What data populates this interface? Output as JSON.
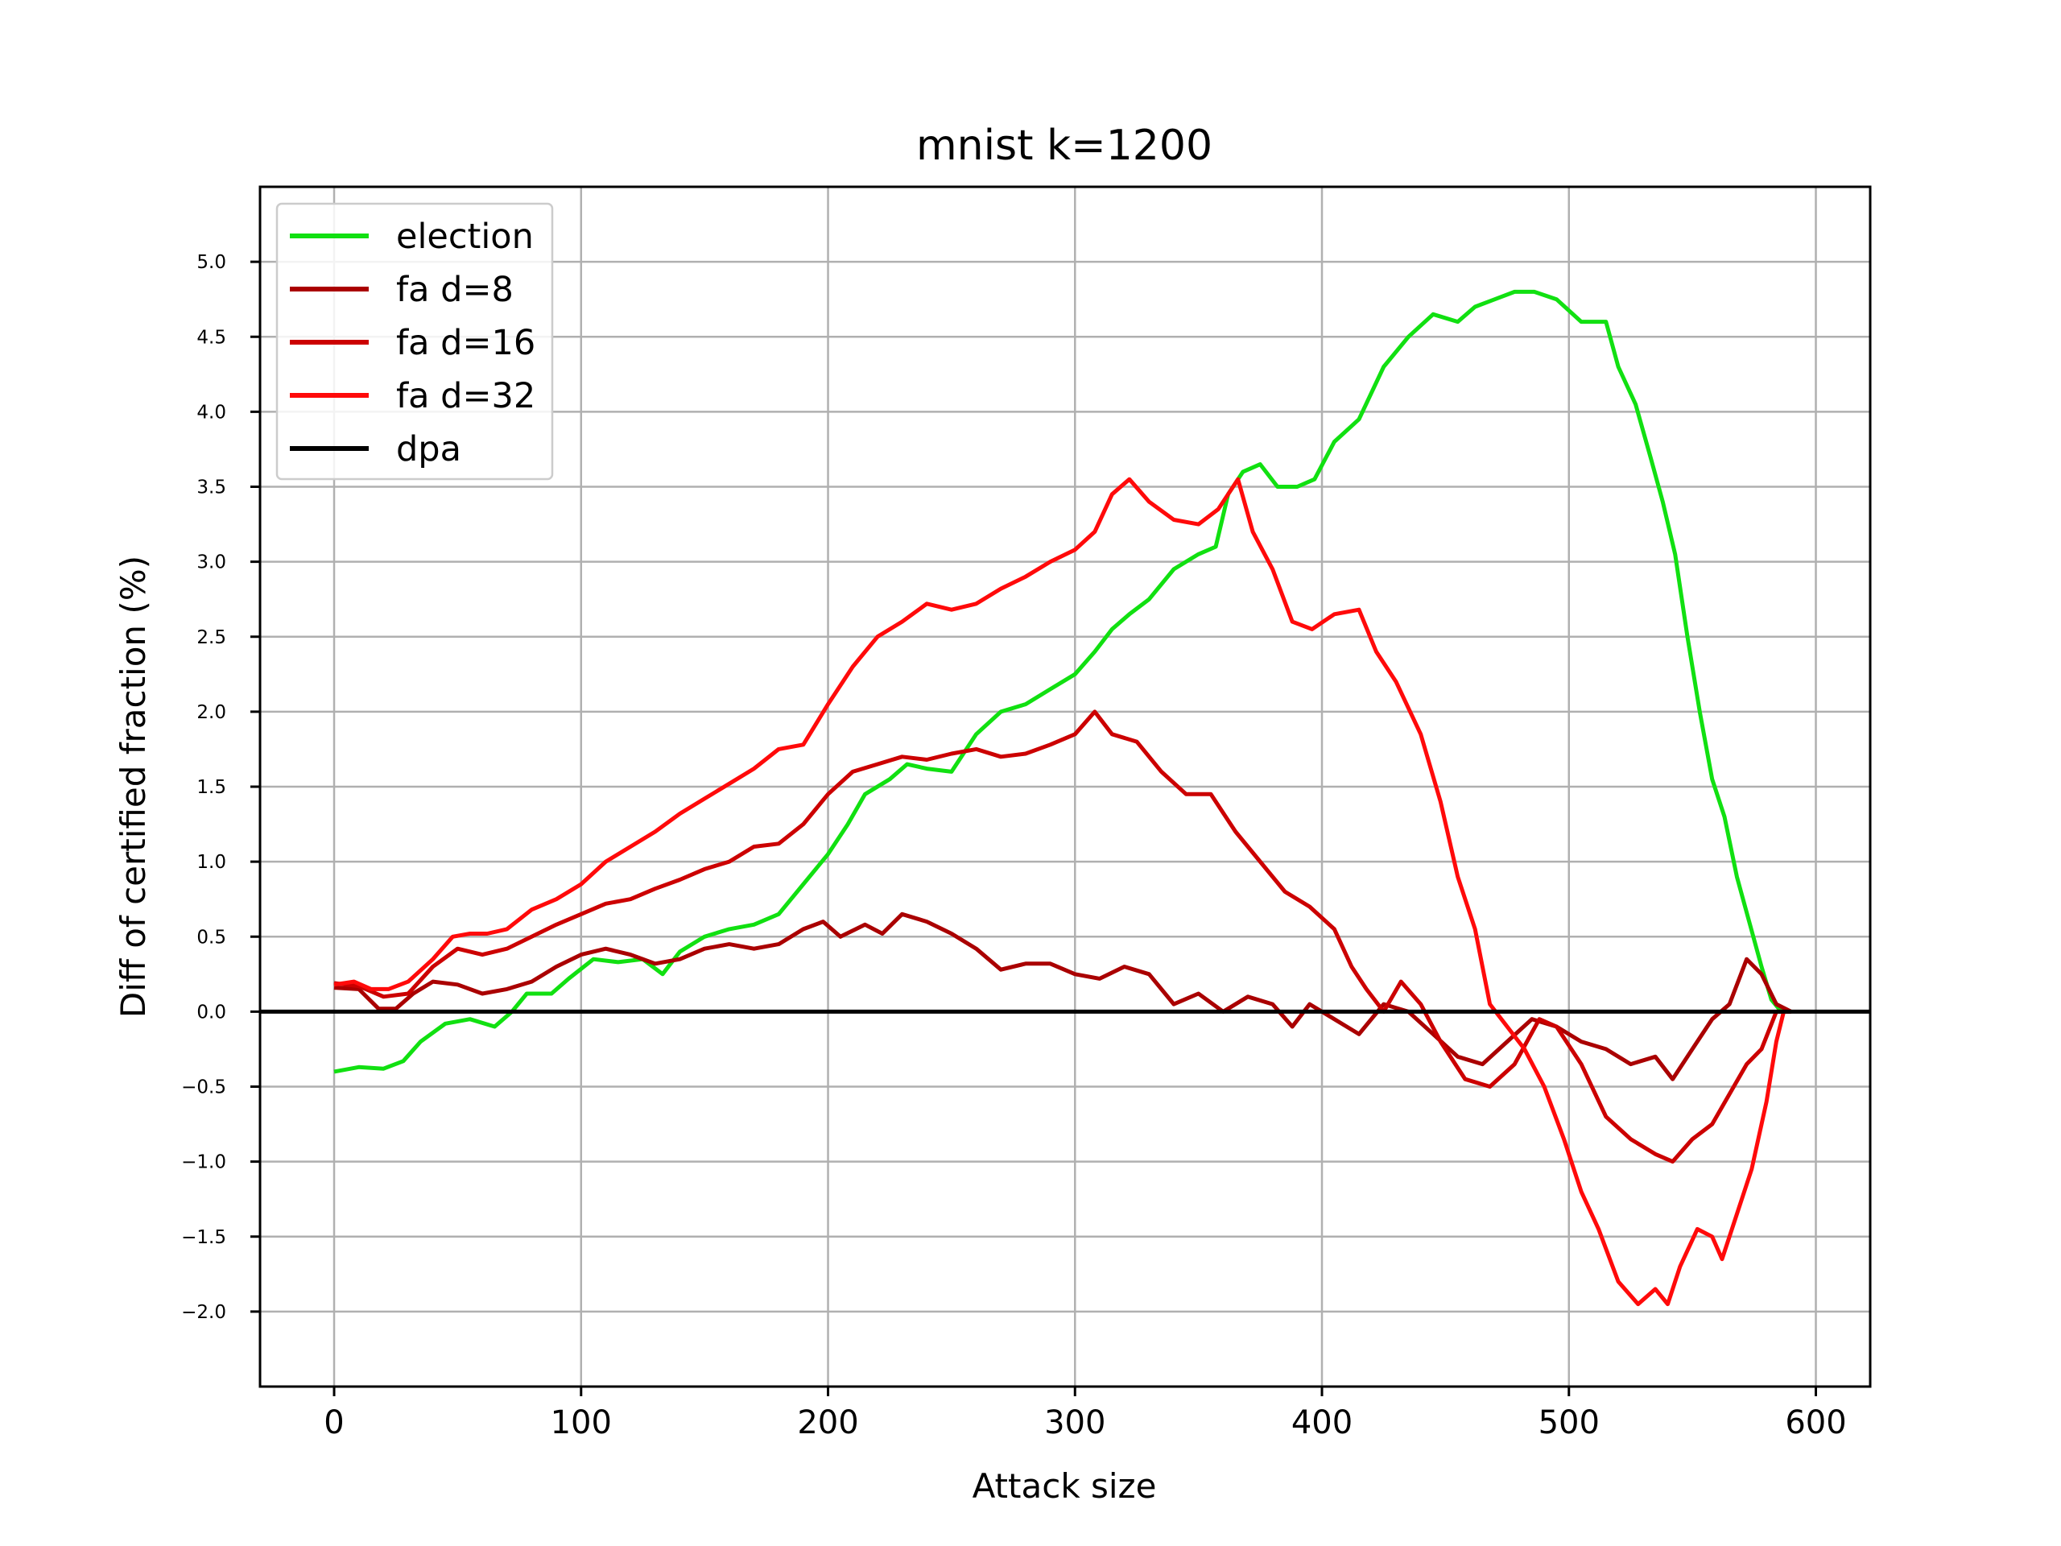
{
  "chart_data": {
    "type": "line",
    "title": "mnist k=1200",
    "xlabel": "Attack size",
    "ylabel": "Diff of certified fraction (%)",
    "xlim": [
      -30,
      622
    ],
    "ylim": [
      -2.5,
      5.5
    ],
    "xticks": [
      0,
      100,
      200,
      300,
      400,
      500,
      600
    ],
    "yticks": [
      -2.0,
      -1.5,
      -1.0,
      -0.5,
      0.0,
      0.5,
      1.0,
      1.5,
      2.0,
      2.5,
      3.0,
      3.5,
      4.0,
      4.5,
      5.0
    ],
    "xtick_labels": [
      "0",
      "100",
      "200",
      "300",
      "400",
      "500",
      "600"
    ],
    "ytick_labels": [
      "−2.0",
      "−1.5",
      "−1.0",
      "−0.5",
      "0.0",
      "0.5",
      "1.0",
      "1.5",
      "2.0",
      "2.5",
      "3.0",
      "3.5",
      "4.0",
      "4.5",
      "5.0"
    ],
    "grid": true,
    "legend_position": "upper-left",
    "series": [
      {
        "name": "election",
        "color": "#11e011",
        "points": [
          [
            0,
            -0.4
          ],
          [
            10,
            -0.37
          ],
          [
            20,
            -0.38
          ],
          [
            28,
            -0.33
          ],
          [
            35,
            -0.2
          ],
          [
            45,
            -0.08
          ],
          [
            55,
            -0.05
          ],
          [
            65,
            -0.1
          ],
          [
            72,
            0.0
          ],
          [
            78,
            0.12
          ],
          [
            88,
            0.12
          ],
          [
            95,
            0.22
          ],
          [
            105,
            0.35
          ],
          [
            115,
            0.33
          ],
          [
            125,
            0.35
          ],
          [
            133,
            0.25
          ],
          [
            140,
            0.4
          ],
          [
            150,
            0.5
          ],
          [
            160,
            0.55
          ],
          [
            170,
            0.58
          ],
          [
            180,
            0.65
          ],
          [
            190,
            0.85
          ],
          [
            200,
            1.05
          ],
          [
            208,
            1.25
          ],
          [
            215,
            1.45
          ],
          [
            225,
            1.55
          ],
          [
            232,
            1.65
          ],
          [
            240,
            1.62
          ],
          [
            250,
            1.6
          ],
          [
            260,
            1.85
          ],
          [
            270,
            2.0
          ],
          [
            280,
            2.05
          ],
          [
            290,
            2.15
          ],
          [
            300,
            2.25
          ],
          [
            308,
            2.4
          ],
          [
            315,
            2.55
          ],
          [
            322,
            2.65
          ],
          [
            330,
            2.75
          ],
          [
            340,
            2.95
          ],
          [
            350,
            3.05
          ],
          [
            357,
            3.1
          ],
          [
            362,
            3.45
          ],
          [
            368,
            3.6
          ],
          [
            375,
            3.65
          ],
          [
            382,
            3.5
          ],
          [
            390,
            3.5
          ],
          [
            397,
            3.55
          ],
          [
            405,
            3.8
          ],
          [
            415,
            3.95
          ],
          [
            425,
            4.3
          ],
          [
            435,
            4.5
          ],
          [
            445,
            4.65
          ],
          [
            455,
            4.6
          ],
          [
            462,
            4.7
          ],
          [
            470,
            4.75
          ],
          [
            478,
            4.8
          ],
          [
            486,
            4.8
          ],
          [
            495,
            4.75
          ],
          [
            505,
            4.6
          ],
          [
            515,
            4.6
          ],
          [
            520,
            4.3
          ],
          [
            527,
            4.05
          ],
          [
            533,
            3.7
          ],
          [
            538,
            3.4
          ],
          [
            543,
            3.05
          ],
          [
            548,
            2.5
          ],
          [
            553,
            2.0
          ],
          [
            558,
            1.55
          ],
          [
            563,
            1.3
          ],
          [
            568,
            0.9
          ],
          [
            573,
            0.6
          ],
          [
            578,
            0.3
          ],
          [
            582,
            0.08
          ],
          [
            586,
            0.0
          ],
          [
            590,
            0.0
          ]
        ]
      },
      {
        "name": "fa d=8",
        "color": "#aa0000",
        "points": [
          [
            0,
            0.16
          ],
          [
            10,
            0.15
          ],
          [
            18,
            0.02
          ],
          [
            25,
            0.02
          ],
          [
            32,
            0.12
          ],
          [
            40,
            0.2
          ],
          [
            50,
            0.18
          ],
          [
            60,
            0.12
          ],
          [
            70,
            0.15
          ],
          [
            80,
            0.2
          ],
          [
            90,
            0.3
          ],
          [
            100,
            0.38
          ],
          [
            110,
            0.42
          ],
          [
            120,
            0.38
          ],
          [
            130,
            0.32
          ],
          [
            140,
            0.35
          ],
          [
            150,
            0.42
          ],
          [
            160,
            0.45
          ],
          [
            170,
            0.42
          ],
          [
            180,
            0.45
          ],
          [
            190,
            0.55
          ],
          [
            198,
            0.6
          ],
          [
            205,
            0.5
          ],
          [
            215,
            0.58
          ],
          [
            222,
            0.52
          ],
          [
            230,
            0.65
          ],
          [
            240,
            0.6
          ],
          [
            250,
            0.52
          ],
          [
            260,
            0.42
          ],
          [
            270,
            0.28
          ],
          [
            280,
            0.32
          ],
          [
            290,
            0.32
          ],
          [
            300,
            0.25
          ],
          [
            310,
            0.22
          ],
          [
            320,
            0.3
          ],
          [
            330,
            0.25
          ],
          [
            340,
            0.05
          ],
          [
            350,
            0.12
          ],
          [
            360,
            0.0
          ],
          [
            370,
            0.1
          ],
          [
            380,
            0.05
          ],
          [
            388,
            -0.1
          ],
          [
            395,
            0.05
          ],
          [
            405,
            -0.05
          ],
          [
            415,
            -0.15
          ],
          [
            425,
            0.05
          ],
          [
            435,
            0.0
          ],
          [
            445,
            -0.15
          ],
          [
            455,
            -0.3
          ],
          [
            465,
            -0.35
          ],
          [
            475,
            -0.2
          ],
          [
            485,
            -0.05
          ],
          [
            495,
            -0.1
          ],
          [
            505,
            -0.2
          ],
          [
            515,
            -0.25
          ],
          [
            525,
            -0.35
          ],
          [
            535,
            -0.3
          ],
          [
            542,
            -0.45
          ],
          [
            550,
            -0.25
          ],
          [
            558,
            -0.05
          ],
          [
            565,
            0.05
          ],
          [
            572,
            0.35
          ],
          [
            578,
            0.25
          ],
          [
            584,
            0.05
          ],
          [
            590,
            0.0
          ]
        ]
      },
      {
        "name": "fa d=16",
        "color": "#cc0000",
        "points": [
          [
            0,
            0.19
          ],
          [
            10,
            0.17
          ],
          [
            20,
            0.1
          ],
          [
            30,
            0.12
          ],
          [
            40,
            0.3
          ],
          [
            50,
            0.42
          ],
          [
            60,
            0.38
          ],
          [
            70,
            0.42
          ],
          [
            80,
            0.5
          ],
          [
            90,
            0.58
          ],
          [
            100,
            0.65
          ],
          [
            110,
            0.72
          ],
          [
            120,
            0.75
          ],
          [
            130,
            0.82
          ],
          [
            140,
            0.88
          ],
          [
            150,
            0.95
          ],
          [
            160,
            1.0
          ],
          [
            170,
            1.1
          ],
          [
            180,
            1.12
          ],
          [
            190,
            1.25
          ],
          [
            200,
            1.45
          ],
          [
            210,
            1.6
          ],
          [
            220,
            1.65
          ],
          [
            230,
            1.7
          ],
          [
            240,
            1.68
          ],
          [
            250,
            1.72
          ],
          [
            260,
            1.75
          ],
          [
            270,
            1.7
          ],
          [
            280,
            1.72
          ],
          [
            290,
            1.78
          ],
          [
            300,
            1.85
          ],
          [
            308,
            2.0
          ],
          [
            315,
            1.85
          ],
          [
            325,
            1.8
          ],
          [
            335,
            1.6
          ],
          [
            345,
            1.45
          ],
          [
            355,
            1.45
          ],
          [
            365,
            1.2
          ],
          [
            375,
            1.0
          ],
          [
            385,
            0.8
          ],
          [
            395,
            0.7
          ],
          [
            405,
            0.55
          ],
          [
            412,
            0.3
          ],
          [
            418,
            0.15
          ],
          [
            425,
            0.0
          ],
          [
            432,
            0.2
          ],
          [
            440,
            0.05
          ],
          [
            448,
            -0.2
          ],
          [
            458,
            -0.45
          ],
          [
            468,
            -0.5
          ],
          [
            478,
            -0.35
          ],
          [
            488,
            -0.05
          ],
          [
            495,
            -0.1
          ],
          [
            505,
            -0.35
          ],
          [
            515,
            -0.7
          ],
          [
            525,
            -0.85
          ],
          [
            535,
            -0.95
          ],
          [
            542,
            -1.0
          ],
          [
            550,
            -0.85
          ],
          [
            558,
            -0.75
          ],
          [
            565,
            -0.55
          ],
          [
            572,
            -0.35
          ],
          [
            578,
            -0.25
          ],
          [
            584,
            0.0
          ],
          [
            590,
            0.0
          ]
        ]
      },
      {
        "name": "fa d=32",
        "color": "#ff0a0a",
        "points": [
          [
            0,
            0.18
          ],
          [
            8,
            0.2
          ],
          [
            15,
            0.15
          ],
          [
            22,
            0.15
          ],
          [
            30,
            0.2
          ],
          [
            40,
            0.35
          ],
          [
            48,
            0.5
          ],
          [
            55,
            0.52
          ],
          [
            62,
            0.52
          ],
          [
            70,
            0.55
          ],
          [
            80,
            0.68
          ],
          [
            90,
            0.75
          ],
          [
            100,
            0.85
          ],
          [
            110,
            1.0
          ],
          [
            120,
            1.1
          ],
          [
            130,
            1.2
          ],
          [
            140,
            1.32
          ],
          [
            150,
            1.42
          ],
          [
            160,
            1.52
          ],
          [
            170,
            1.62
          ],
          [
            180,
            1.75
          ],
          [
            190,
            1.78
          ],
          [
            200,
            2.05
          ],
          [
            210,
            2.3
          ],
          [
            220,
            2.5
          ],
          [
            230,
            2.6
          ],
          [
            240,
            2.72
          ],
          [
            250,
            2.68
          ],
          [
            260,
            2.72
          ],
          [
            270,
            2.82
          ],
          [
            280,
            2.9
          ],
          [
            290,
            3.0
          ],
          [
            300,
            3.08
          ],
          [
            308,
            3.2
          ],
          [
            315,
            3.45
          ],
          [
            322,
            3.55
          ],
          [
            330,
            3.4
          ],
          [
            340,
            3.28
          ],
          [
            350,
            3.25
          ],
          [
            358,
            3.35
          ],
          [
            366,
            3.55
          ],
          [
            372,
            3.2
          ],
          [
            380,
            2.95
          ],
          [
            388,
            2.6
          ],
          [
            396,
            2.55
          ],
          [
            405,
            2.65
          ],
          [
            415,
            2.68
          ],
          [
            422,
            2.4
          ],
          [
            430,
            2.2
          ],
          [
            440,
            1.85
          ],
          [
            448,
            1.4
          ],
          [
            455,
            0.9
          ],
          [
            462,
            0.55
          ],
          [
            468,
            0.05
          ],
          [
            475,
            -0.1
          ],
          [
            482,
            -0.25
          ],
          [
            490,
            -0.5
          ],
          [
            498,
            -0.85
          ],
          [
            505,
            -1.2
          ],
          [
            512,
            -1.45
          ],
          [
            520,
            -1.8
          ],
          [
            528,
            -1.95
          ],
          [
            535,
            -1.85
          ],
          [
            540,
            -1.95
          ],
          [
            545,
            -1.7
          ],
          [
            552,
            -1.45
          ],
          [
            558,
            -1.5
          ],
          [
            562,
            -1.65
          ],
          [
            568,
            -1.35
          ],
          [
            574,
            -1.05
          ],
          [
            580,
            -0.6
          ],
          [
            584,
            -0.2
          ],
          [
            587,
            0.0
          ],
          [
            590,
            0.0
          ]
        ]
      },
      {
        "name": "dpa",
        "color": "#000000",
        "points": [
          [
            -30,
            0
          ],
          [
            622,
            0
          ]
        ]
      }
    ]
  }
}
